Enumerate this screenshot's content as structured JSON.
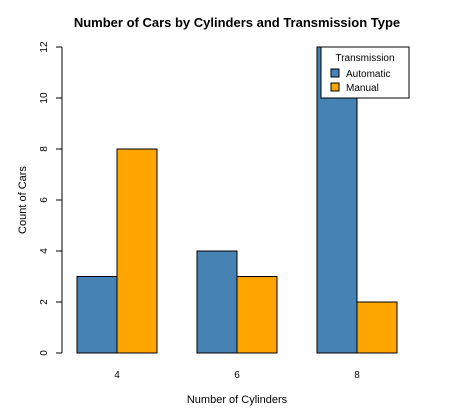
{
  "chart_data": {
    "type": "bar",
    "title": "Number of Cars by Cylinders and Transmission Type",
    "xlabel": "Number of Cylinders",
    "ylabel": "Count of Cars",
    "categories": [
      "4",
      "6",
      "8"
    ],
    "series": [
      {
        "name": "Automatic",
        "values": [
          3,
          4,
          12
        ],
        "color": "#4682B4"
      },
      {
        "name": "Manual",
        "values": [
          8,
          3,
          2
        ],
        "color": "#FFA500"
      }
    ],
    "ylim": [
      0,
      12
    ],
    "yticks": [
      "0",
      "2",
      "4",
      "6",
      "8",
      "10",
      "12"
    ],
    "grid": false,
    "legend": {
      "title": "Transmission",
      "position": "top-right"
    }
  }
}
